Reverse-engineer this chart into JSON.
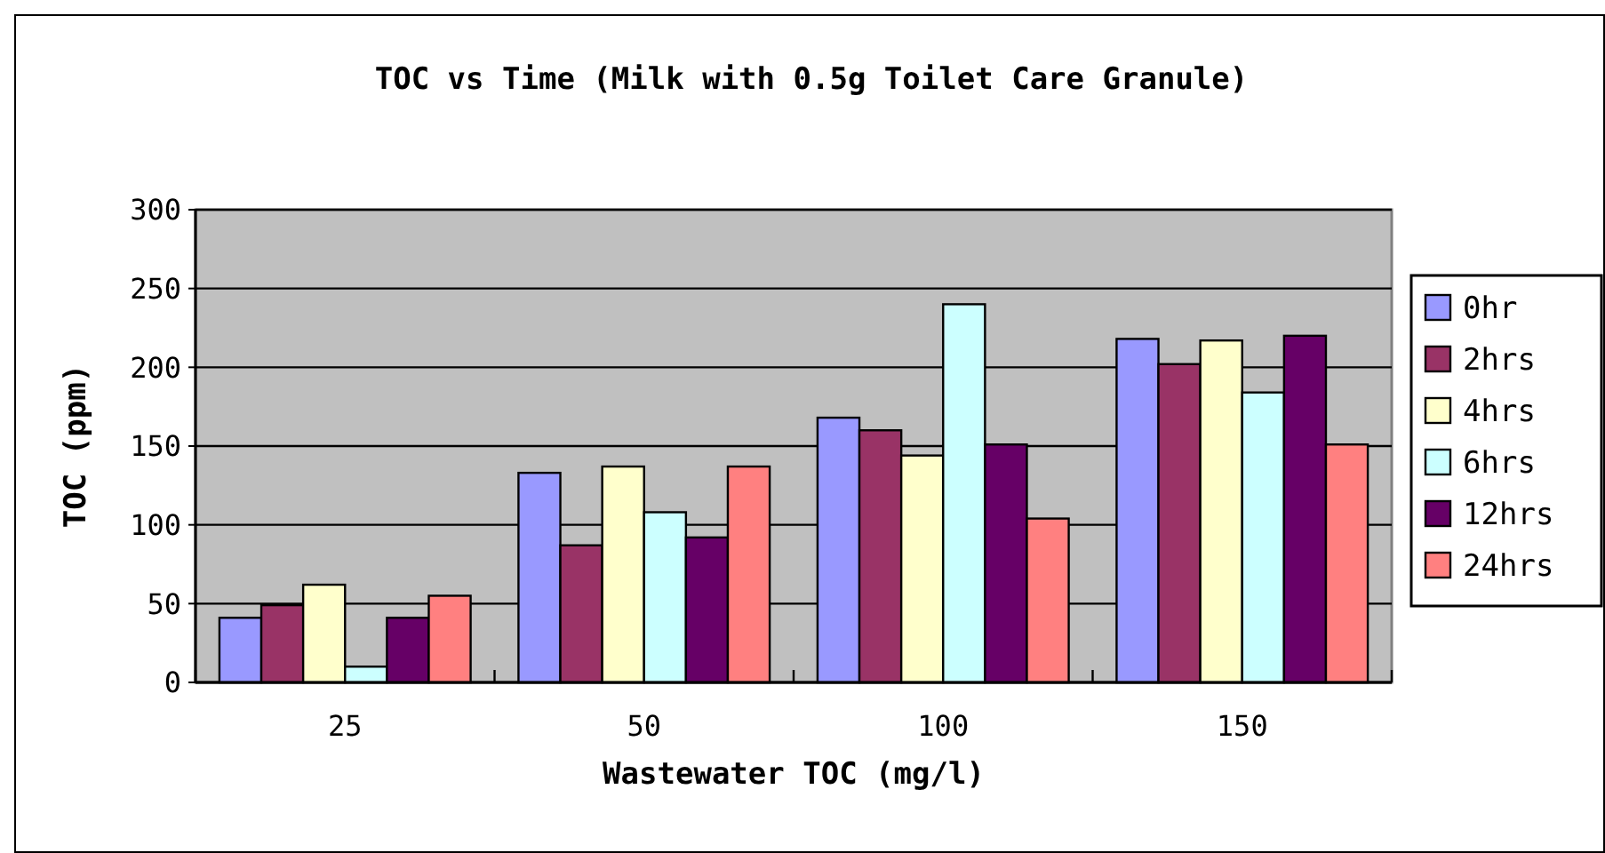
{
  "chart_data": {
    "type": "bar",
    "title": "TOC vs Time (Milk with 0.5g Toilet Care Granule)",
    "xlabel": "Wastewater TOC (mg/l)",
    "ylabel": "TOC (ppm)",
    "categories": [
      "25",
      "50",
      "100",
      "150"
    ],
    "series": [
      {
        "name": "0hr",
        "color": "#9999ff",
        "values": [
          41,
          133,
          168,
          218
        ]
      },
      {
        "name": "2hrs",
        "color": "#993366",
        "values": [
          49,
          87,
          160,
          202
        ]
      },
      {
        "name": "4hrs",
        "color": "#ffffcc",
        "values": [
          62,
          137,
          144,
          217
        ]
      },
      {
        "name": "6hrs",
        "color": "#ccffff",
        "values": [
          10,
          108,
          240,
          184
        ]
      },
      {
        "name": "12hrs",
        "color": "#660066",
        "values": [
          41,
          92,
          151,
          220
        ]
      },
      {
        "name": "24hrs",
        "color": "#ff8080",
        "values": [
          55,
          137,
          104,
          151
        ]
      }
    ],
    "ylim": [
      0,
      300
    ],
    "yticks": [
      0,
      50,
      100,
      150,
      200,
      250,
      300
    ],
    "grid": "y",
    "legend": "right"
  }
}
